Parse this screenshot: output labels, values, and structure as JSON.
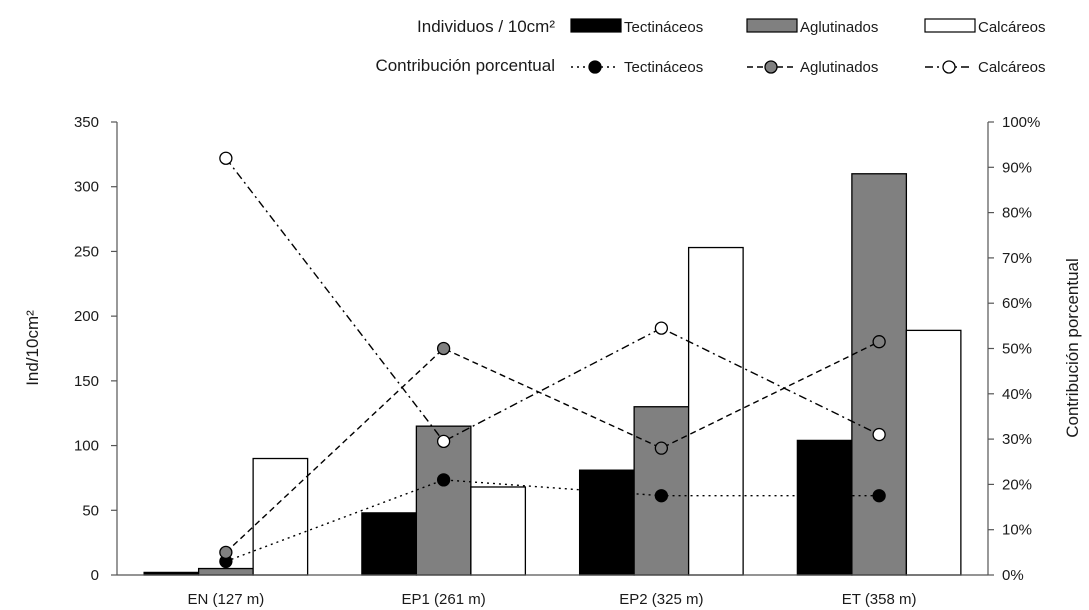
{
  "chart_data": {
    "type": "bar",
    "categories": [
      "EN (127 m)",
      "EP1 (261 m)",
      "EP2 (325 m)",
      "ET (358 m)"
    ],
    "bar_series": [
      {
        "name": "Tectináceos",
        "values": [
          2,
          48,
          81,
          104
        ],
        "fill": "#000000",
        "stroke": "#000000"
      },
      {
        "name": "Aglutinados",
        "values": [
          5,
          115,
          130,
          310
        ],
        "fill": "#808080",
        "stroke": "#000000"
      },
      {
        "name": "Calcáreos",
        "values": [
          90,
          68,
          253,
          189
        ],
        "fill": "#ffffff",
        "stroke": "#000000"
      }
    ],
    "line_series": [
      {
        "name": "Tectináceos",
        "values": [
          0.03,
          0.21,
          0.175,
          0.175
        ],
        "marker_fill": "#000000",
        "dash": "2,4"
      },
      {
        "name": "Aglutinados",
        "values": [
          0.05,
          0.5,
          0.28,
          0.515
        ],
        "marker_fill": "#808080",
        "dash": "6,4"
      },
      {
        "name": "Calcáreos",
        "values": [
          0.92,
          0.295,
          0.545,
          0.31
        ],
        "marker_fill": "#ffffff",
        "dash": "8,4,2,4"
      }
    ],
    "ylabel": "Ind/10cm²",
    "y2label": "Contribución porcentual",
    "ylim": [
      0,
      350
    ],
    "y_ticks": [
      0,
      50,
      100,
      150,
      200,
      250,
      300,
      350
    ],
    "y2lim": [
      0,
      1
    ],
    "y2_ticks": [
      "0%",
      "10%",
      "20%",
      "30%",
      "40%",
      "50%",
      "60%",
      "70%",
      "80%",
      "90%",
      "100%"
    ],
    "legend_bar_title": "Individuos / 10cm²",
    "legend_line_title": "Contribución porcentual",
    "legend_position": "top-right",
    "grid": false
  }
}
